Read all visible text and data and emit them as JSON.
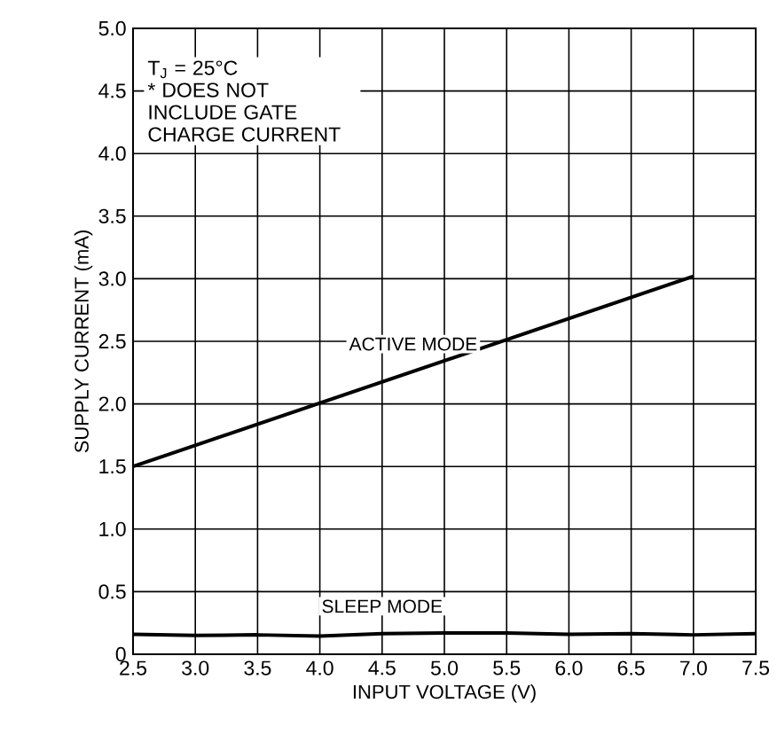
{
  "chart_data": {
    "type": "line",
    "xlabel": "INPUT VOLTAGE (V)",
    "ylabel": "SUPPLY CURRENT (mA)",
    "xlim": [
      2.5,
      7.5
    ],
    "xticks": [
      {
        "value": 2.5,
        "label": "2.5"
      },
      {
        "value": 3.0,
        "label": "3.0"
      },
      {
        "value": 3.5,
        "label": "3.5"
      },
      {
        "value": 4.0,
        "label": "4.0"
      },
      {
        "value": 4.5,
        "label": "4.5"
      },
      {
        "value": 5.0,
        "label": "5.0"
      },
      {
        "value": 5.5,
        "label": "5.5"
      },
      {
        "value": 6.0,
        "label": "6.0"
      },
      {
        "value": 6.5,
        "label": "6.5"
      },
      {
        "value": 7.0,
        "label": "7.0"
      },
      {
        "value": 7.5,
        "label": "7.5"
      }
    ],
    "ylim": [
      0,
      5.0
    ],
    "yticks": [
      0,
      {
        "value": 0.5,
        "label": "0.5"
      },
      {
        "value": 1.0,
        "label": "1.0"
      },
      {
        "value": 1.5,
        "label": "1.5"
      },
      {
        "value": 2.0,
        "label": "2.0"
      },
      {
        "value": 2.5,
        "label": "2.5"
      },
      {
        "value": 3.0,
        "label": "3.0"
      },
      {
        "value": 3.5,
        "label": "3.5"
      },
      {
        "value": 4.0,
        "label": "4.0"
      },
      {
        "value": 4.5,
        "label": "4.5"
      },
      {
        "value": 5.0,
        "label": "5.0"
      }
    ],
    "grid": true,
    "legend": false,
    "marker": "none",
    "line_style": "solid",
    "annotations": [
      "T$_{J}$ = 25°C",
      "* DOES NOT INCLUDE GATE CHARGE CURRENT"
    ],
    "series": [
      {
        "name": "ACTIVE MODE",
        "color": "#000000",
        "x": [
          2.5,
          7.0
        ],
        "values": [
          1.5,
          3.02
        ]
      },
      {
        "name": "SLEEP MODE",
        "color": "#000000",
        "x": [
          2.5,
          3.0,
          3.5,
          4.0,
          4.5,
          5.0,
          5.5,
          6.0,
          6.5,
          7.0,
          7.5
        ],
        "values": [
          0.16,
          0.15,
          0.155,
          0.145,
          0.165,
          0.17,
          0.17,
          0.16,
          0.165,
          0.155,
          0.165
        ]
      }
    ]
  }
}
